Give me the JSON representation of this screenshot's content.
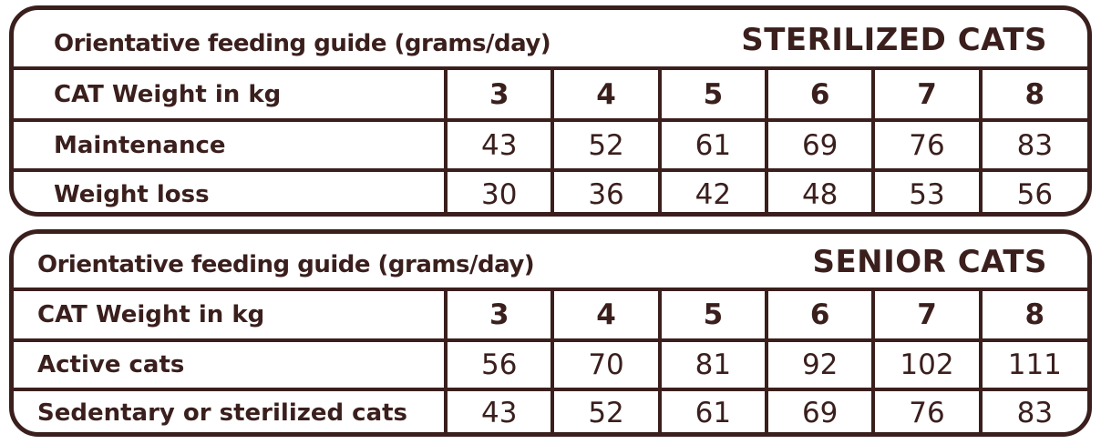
{
  "tables": [
    {
      "title": "Orientative feeding guide (grams/day)",
      "category": "STERILIZED CATS",
      "header_label": "CAT Weight in kg",
      "weights": [
        "3",
        "4",
        "5",
        "6",
        "7",
        "8"
      ],
      "rows": [
        {
          "label": "Maintenance",
          "values": [
            "43",
            "52",
            "61",
            "69",
            "76",
            "83"
          ]
        },
        {
          "label": "Weight loss",
          "values": [
            "30",
            "36",
            "42",
            "48",
            "53",
            "56"
          ]
        }
      ]
    },
    {
      "title": "Orientative feeding guide (grams/day)",
      "category": "SENIOR CATS",
      "header_label": "CAT Weight in kg",
      "weights": [
        "3",
        "4",
        "5",
        "6",
        "7",
        "8"
      ],
      "rows": [
        {
          "label": "Active cats",
          "values": [
            "56",
            "70",
            "81",
            "92",
            "102",
            "111"
          ]
        },
        {
          "label": "Sedentary or sterilized cats",
          "values": [
            "43",
            "52",
            "61",
            "69",
            "76",
            "83"
          ]
        }
      ]
    }
  ],
  "colors": {
    "ink": "#3a1f1d",
    "background": "#ffffff"
  }
}
